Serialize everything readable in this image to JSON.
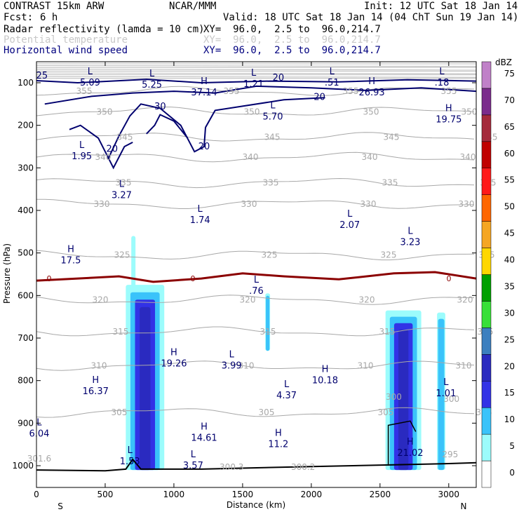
{
  "header": {
    "model": "CONTRAST 15km ARW",
    "org": "NCAR/MMM",
    "init": "Init: 12 UTC Sat 18 Jan 14",
    "fcst_label": "Fcst:",
    "fcst_value": "6 h",
    "valid": "Valid: 18 UTC Sat 18 Jan 14 (04 ChT Sun 19 Jan 14)",
    "fields": [
      {
        "name": "Radar reflectivity (lamda = 10 cm)",
        "xy": "XY=  96.0,  2.5 to  96.0,214.7"
      },
      {
        "name": "Potential temperature",
        "xy": "XY=  96.0,  2.5 to  96.0,214.7"
      },
      {
        "name": "Horizontal wind speed",
        "xy": "XY=  96.0,  2.5 to  96.0,214.7"
      }
    ]
  },
  "colors": {
    "wind": "#00006e",
    "theta": "#a8a8a8",
    "freezing": "#8b0000",
    "terrain": "#000000"
  },
  "chart_data": {
    "type": "cross-section",
    "xlabel": "Distance (km)",
    "ylabel": "Pressure (hPa)",
    "xlim": [
      0,
      3200
    ],
    "ylim": [
      1040,
      50
    ],
    "x_ticks": [
      0,
      500,
      1000,
      1500,
      2000,
      2500,
      3000
    ],
    "y_ticks": [
      100,
      200,
      300,
      400,
      500,
      600,
      700,
      800,
      900,
      1000
    ],
    "end_labels": {
      "left": "S",
      "right": "N"
    },
    "colorbar": {
      "unit": "dBZ",
      "levels": [
        0,
        5,
        10,
        15,
        20,
        25,
        30,
        35,
        40,
        45,
        50,
        55,
        60,
        65,
        70,
        75
      ],
      "colors": [
        "#ffffff",
        "#9cfcfc",
        "#3ac3fa",
        "#3232e6",
        "#2a2ac0",
        "#3c7fbf",
        "#38e038",
        "#00a000",
        "#ffd700",
        "#f5a623",
        "#ff6600",
        "#ff1a1a",
        "#c00000",
        "#a52a3c",
        "#7b2b8c",
        "#c080c8"
      ]
    },
    "reflectivity_cells": [
      {
        "x0": 650,
        "x1": 930,
        "p0": 575,
        "p1": 1010
      },
      {
        "x0": 2540,
        "x1": 2800,
        "p0": 635,
        "p1": 1010
      },
      {
        "x0": 2915,
        "x1": 2975,
        "p0": 640,
        "p1": 1010
      },
      {
        "x0": 1665,
        "x1": 1700,
        "p0": 595,
        "p1": 730
      }
    ],
    "theta_contours": [
      {
        "label": "355",
        "p": 120
      },
      {
        "label": "350",
        "p": 168
      },
      {
        "label": "345",
        "p": 228
      },
      {
        "label": "340",
        "p": 275
      },
      {
        "label": "335",
        "p": 335
      },
      {
        "label": "330",
        "p": 385
      },
      {
        "label": "325",
        "p": 505
      },
      {
        "label": "320",
        "p": 610
      },
      {
        "label": "315",
        "p": 685
      },
      {
        "label": "310",
        "p": 765
      },
      {
        "label": "305",
        "p": 875
      }
    ],
    "theta_labels": [
      {
        "text": "300",
        "x": 2600,
        "p": 845
      },
      {
        "text": "300",
        "x": 3020,
        "p": 850
      },
      {
        "text": "295",
        "x": 3010,
        "p": 980
      },
      {
        "text": "300.3",
        "x": 1420,
        "p": 1010
      },
      {
        "text": "300.2",
        "x": 1940,
        "p": 1010
      },
      {
        "text": "301.6",
        "x": 20,
        "p": 990
      }
    ],
    "wind_contour_labels": [
      {
        "text": "20",
        "x": 1760,
        "p": 95
      },
      {
        "text": "20",
        "x": 2060,
        "p": 140
      },
      {
        "text": "30",
        "x": 900,
        "p": 163
      },
      {
        "text": "20",
        "x": 550,
        "p": 262
      },
      {
        "text": "20",
        "x": 1220,
        "p": 257
      },
      {
        "text": "25",
        "x": 40,
        "p": 90
      }
    ],
    "freezing_level": {
      "label": "0",
      "points": [
        [
          0,
          565
        ],
        [
          300,
          560
        ],
        [
          600,
          555
        ],
        [
          850,
          568
        ],
        [
          1200,
          560
        ],
        [
          1500,
          548
        ],
        [
          1800,
          555
        ],
        [
          2200,
          562
        ],
        [
          2600,
          548
        ],
        [
          2900,
          545
        ],
        [
          3200,
          560
        ]
      ]
    },
    "terrain": [
      [
        0,
        1010
      ],
      [
        500,
        1012
      ],
      [
        650,
        1008
      ],
      [
        700,
        985
      ],
      [
        760,
        1008
      ],
      [
        1200,
        1008
      ],
      [
        2000,
        1002
      ],
      [
        2600,
        998
      ],
      [
        3000,
        995
      ],
      [
        3200,
        993
      ]
    ],
    "extrema": [
      {
        "type": "L",
        "value": "5.09",
        "x": 390,
        "p": 95
      },
      {
        "type": "L",
        "value": "5.25",
        "x": 840,
        "p": 100
      },
      {
        "type": "L",
        "value": "1.21",
        "x": 1580,
        "p": 98
      },
      {
        "type": "L",
        "value": ".51",
        "x": 2150,
        "p": 95
      },
      {
        "type": "L",
        "value": ".18",
        "x": 2950,
        "p": 95
      },
      {
        "type": "H",
        "value": "37.14",
        "x": 1220,
        "p": 118
      },
      {
        "type": "H",
        "value": "26.93",
        "x": 2440,
        "p": 118
      },
      {
        "type": "L",
        "value": "5.70",
        "x": 1720,
        "p": 175
      },
      {
        "type": "H",
        "value": "19.75",
        "x": 3000,
        "p": 182
      },
      {
        "type": "L",
        "value": "1.95",
        "x": 330,
        "p": 268
      },
      {
        "type": "L",
        "value": "3.27",
        "x": 620,
        "p": 360
      },
      {
        "type": "L",
        "value": "1.74",
        "x": 1190,
        "p": 418
      },
      {
        "type": "L",
        "value": "2.07",
        "x": 2280,
        "p": 430
      },
      {
        "type": "L",
        "value": "3.23",
        "x": 2720,
        "p": 470
      },
      {
        "type": "H",
        "value": "17.5",
        "x": 250,
        "p": 513
      },
      {
        "type": "L",
        "value": ".76",
        "x": 1600,
        "p": 585
      },
      {
        "type": "H",
        "value": "19.26",
        "x": 1000,
        "p": 755
      },
      {
        "type": "L",
        "value": "3.99",
        "x": 1420,
        "p": 760
      },
      {
        "type": "H",
        "value": "10.18",
        "x": 2100,
        "p": 795
      },
      {
        "type": "H",
        "value": "16.37",
        "x": 430,
        "p": 820
      },
      {
        "type": "L",
        "value": "4.37",
        "x": 1820,
        "p": 830
      },
      {
        "type": "L",
        "value": "1.01",
        "x": 2980,
        "p": 825
      },
      {
        "type": "H",
        "value": "14.61",
        "x": 1220,
        "p": 930
      },
      {
        "type": "H",
        "value": "11.2",
        "x": 1760,
        "p": 945
      },
      {
        "type": "H",
        "value": "21.02",
        "x": 2720,
        "p": 965
      },
      {
        "type": "L",
        "value": "6.04",
        "x": 20,
        "p": 920
      },
      {
        "type": "L",
        "value": "1.53",
        "x": 680,
        "p": 985
      },
      {
        "type": "L",
        "value": "3.57",
        "x": 1140,
        "p": 995
      }
    ]
  }
}
